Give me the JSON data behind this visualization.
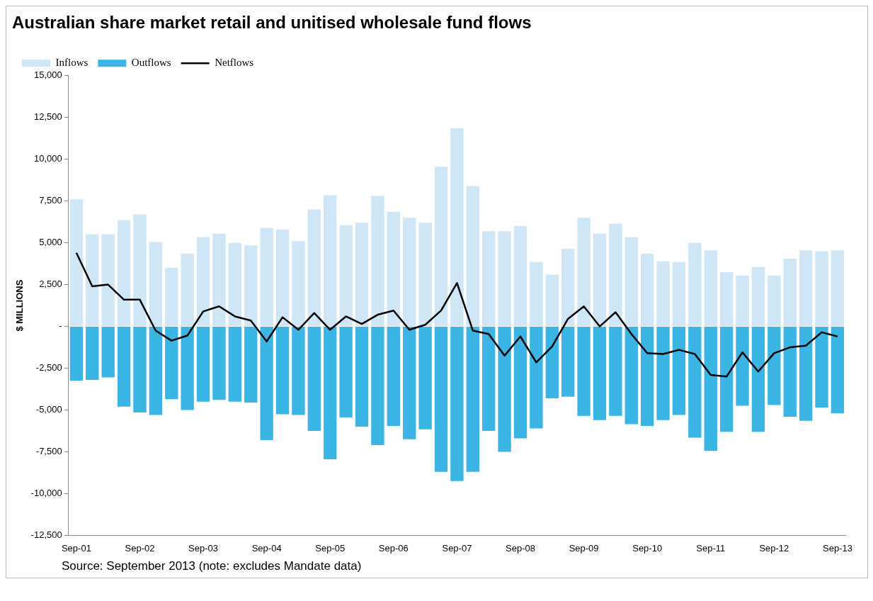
{
  "chart_data": {
    "type": "bar",
    "title": "Australian share market retail and unitised wholesale fund flows",
    "ylabel": "$ MILLIONS",
    "categories": [
      "Sep-01",
      null,
      null,
      null,
      "Sep-02",
      null,
      null,
      null,
      "Sep-03",
      null,
      null,
      null,
      "Sep-04",
      null,
      null,
      null,
      "Sep-05",
      null,
      null,
      null,
      "Sep-06",
      null,
      null,
      null,
      "Sep-07",
      null,
      null,
      null,
      "Sep-08",
      null,
      null,
      null,
      "Sep-09",
      null,
      null,
      null,
      "Sep-10",
      null,
      null,
      null,
      "Sep-11",
      null,
      null,
      null,
      "Sep-12",
      null,
      null,
      null,
      "Sep-13"
    ],
    "stacked": true,
    "series": [
      {
        "name": "Inflows",
        "color": "#cfe6f6",
        "values": [
          7600,
          5500,
          5500,
          6350,
          6700,
          5050,
          3500,
          4350,
          5350,
          5550,
          5000,
          4850,
          5900,
          5800,
          5100,
          7000,
          7850,
          6050,
          6200,
          7800,
          6850,
          6500,
          6200,
          9550,
          11850,
          8400,
          5700,
          5700,
          6000,
          3850,
          3100,
          4650,
          6500,
          5550,
          6150,
          5350,
          4350,
          3900,
          3850,
          5000,
          4550,
          3250,
          3050,
          3550,
          3050,
          4050,
          4550,
          4500,
          4550
        ]
      },
      {
        "name": "Outflows",
        "color": "#3bb5e3",
        "values": [
          -3250,
          -3200,
          -3050,
          -4800,
          -5150,
          -5300,
          -4350,
          -5000,
          -4500,
          -4400,
          -4500,
          -4550,
          -6800,
          -5250,
          -5300,
          -6250,
          -7950,
          -5450,
          -6000,
          -7100,
          -5950,
          -6750,
          -6150,
          -8700,
          -9250,
          -8700,
          -6250,
          -7500,
          -6700,
          -6100,
          -4300,
          -4200,
          -5350,
          -5600,
          -5350,
          -5850,
          -5950,
          -5600,
          -5300,
          -6650,
          -7450,
          -6300,
          -4750,
          -6300,
          -4700,
          -5400,
          -5650,
          -4850,
          -5200
        ]
      },
      {
        "name": "Netflows",
        "type": "line",
        "color": "#000000",
        "values": [
          4400,
          2400,
          2500,
          1600,
          1600,
          -250,
          -850,
          -550,
          900,
          1200,
          600,
          350,
          -900,
          550,
          -200,
          800,
          -200,
          600,
          150,
          700,
          950,
          -200,
          100,
          950,
          2600,
          -250,
          -450,
          -1750,
          -600,
          -2150,
          -1200,
          450,
          1200,
          0,
          850,
          -450,
          -1600,
          -1650,
          -1400,
          -1650,
          -2900,
          -3000,
          -1550,
          -2700,
          -1600,
          -1250,
          -1150,
          -350,
          -600
        ]
      }
    ],
    "ylim": [
      -12500,
      15000
    ],
    "yticks": [
      {
        "value": -12500,
        "label": "-12,500"
      },
      {
        "value": -10000,
        "label": "-10,000"
      },
      {
        "value": -7500,
        "label": "-7,500"
      },
      {
        "value": -5000,
        "label": "-5,000"
      },
      {
        "value": -2500,
        "label": "-2,500"
      },
      {
        "value": 0,
        "label": "-"
      },
      {
        "value": 2500,
        "label": "2,500"
      },
      {
        "value": 5000,
        "label": "5,000"
      },
      {
        "value": 7500,
        "label": "7,500"
      },
      {
        "value": 10000,
        "label": "10,000"
      },
      {
        "value": 12500,
        "label": "12,500"
      },
      {
        "value": 15000,
        "label": "15,000"
      }
    ],
    "grid": false,
    "legend": "top left",
    "marker": "none",
    "annotations": [
      "Source: September 2013 (note: excludes Mandate data)"
    ]
  }
}
